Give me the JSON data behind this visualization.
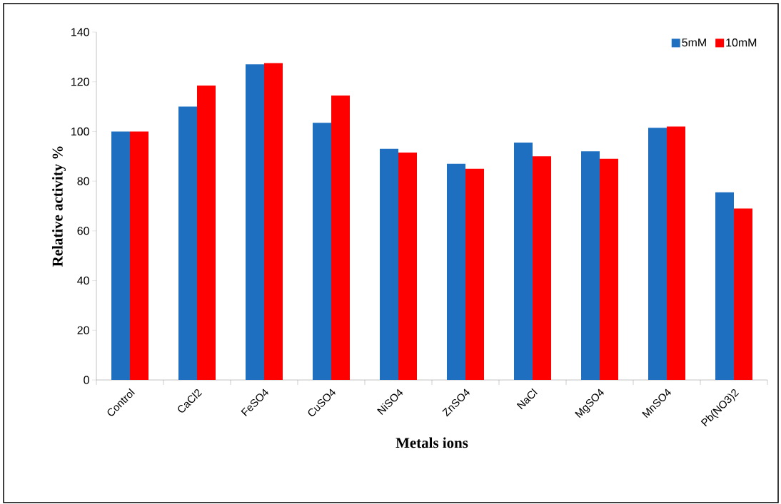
{
  "chart_data": {
    "type": "bar",
    "xlabel": "Metals ions",
    "ylabel": "Relative activity %",
    "categories": [
      "Control",
      "CaCl2",
      "FeSO4",
      "CuSO4",
      "NiSO4",
      "ZnSO4",
      "NaCl",
      "MgSO4",
      "MnSO4",
      "Pb(NO3)2"
    ],
    "series": [
      {
        "name": "5mM",
        "color": "#1f6fc0",
        "values": [
          100,
          110,
          127,
          103.5,
          93,
          87,
          95.5,
          92,
          101.5,
          75.5
        ]
      },
      {
        "name": "10mM",
        "color": "#ff0000",
        "values": [
          100,
          118.5,
          127.5,
          114.5,
          91.5,
          85,
          90,
          89,
          102,
          69
        ]
      }
    ],
    "ylim": [
      0,
      140
    ],
    "yticks": [
      0,
      20,
      40,
      60,
      80,
      100,
      120,
      140
    ],
    "legend": "top right",
    "grid": false
  }
}
